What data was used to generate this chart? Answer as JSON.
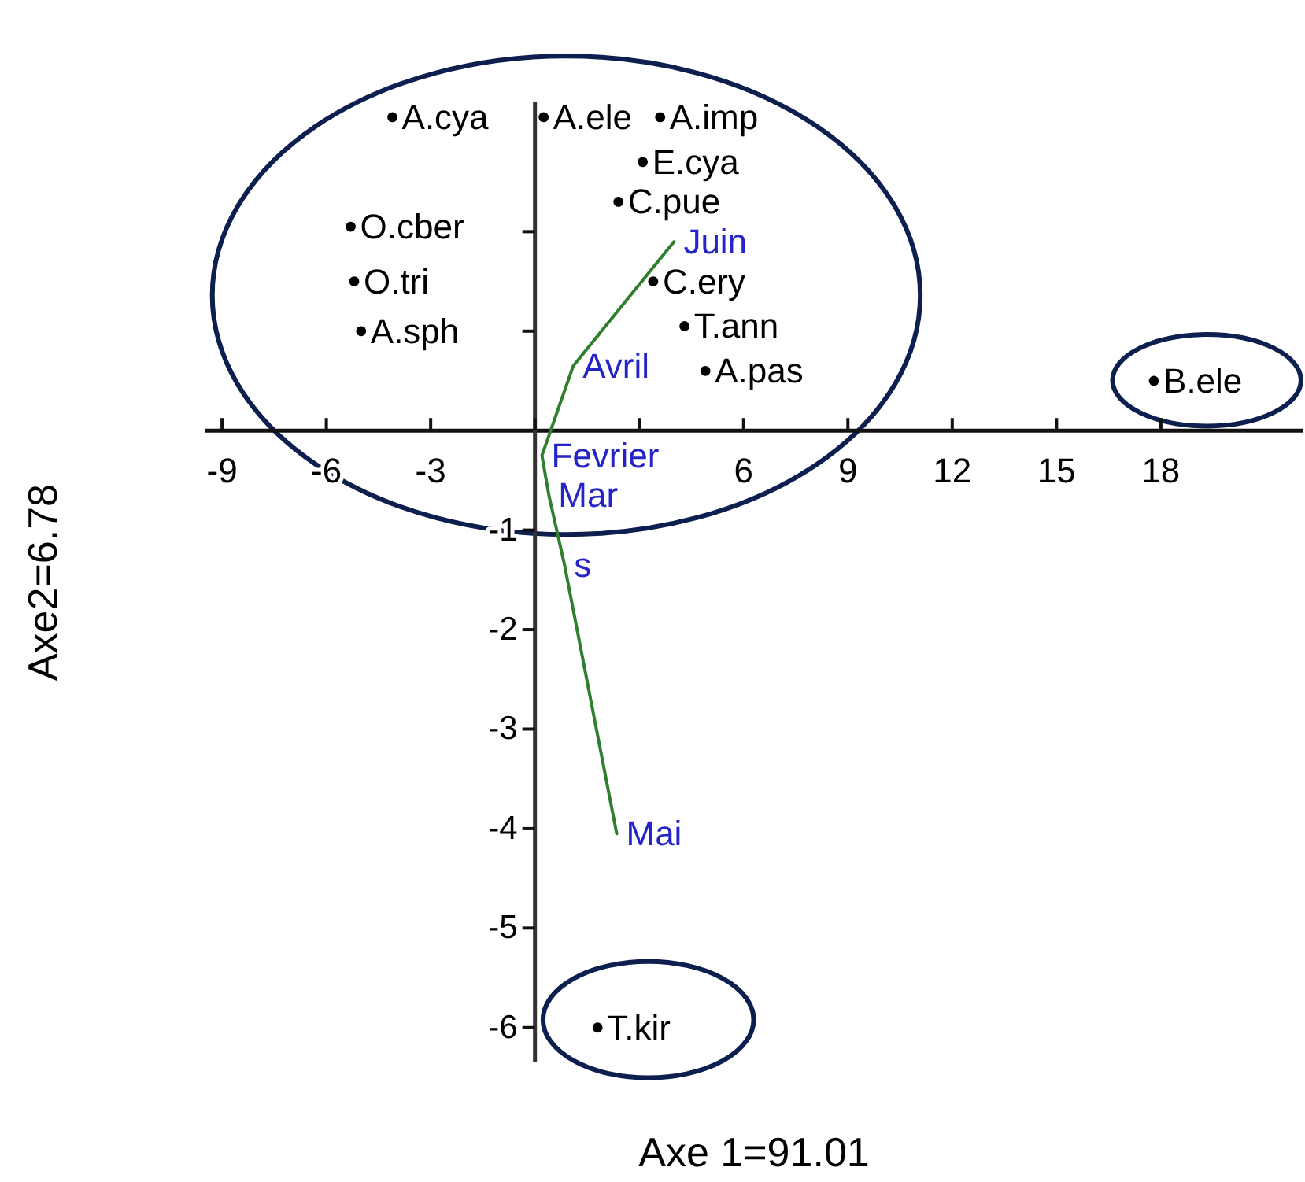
{
  "chart_data": {
    "type": "scatter",
    "xlabel": "Axe 1=91.01",
    "ylabel": "Axe2=6.78",
    "xlim": [
      -9.5,
      22.1
    ],
    "ylim": [
      -6.35,
      3.3
    ],
    "xticks": [
      -9,
      -6,
      -3,
      {
        "value": 0,
        "label": null
      },
      {
        "value": 3,
        "label": null
      },
      6,
      9,
      12,
      15,
      18
    ],
    "yticks": [
      -6,
      -5,
      -4,
      -3,
      -2,
      -1,
      {
        "value": 1,
        "label": null
      },
      {
        "value": 2,
        "label": null
      }
    ],
    "series": [
      {
        "type": "scatter",
        "color": "#000000",
        "marker": "circle",
        "x": [
          -4.1,
          0.25,
          3.6,
          3.1,
          2.4,
          -5.3,
          -5.2,
          3.4,
          4.3,
          -5.0,
          4.9,
          17.8,
          1.8
        ],
        "values": [
          3.15,
          3.15,
          3.15,
          2.7,
          2.3,
          2.05,
          1.5,
          1.5,
          1.05,
          1.0,
          0.6,
          0.5,
          -6.0
        ]
      },
      {
        "type": "line",
        "color": "#2f7f2f",
        "marker": "none",
        "x": [
          4.0,
          1.1,
          0.2,
          0.4,
          0.85,
          2.35
        ],
        "values": [
          1.9,
          0.65,
          -0.25,
          -0.65,
          -1.35,
          -4.05
        ]
      }
    ],
    "annotations": [
      {
        "text": "A.cya",
        "x": -4.1,
        "y": 3.15
      },
      {
        "text": "A.ele",
        "x": 0.25,
        "y": 3.15
      },
      {
        "text": "A.imp",
        "x": 3.6,
        "y": 3.15
      },
      {
        "text": "E.cya",
        "x": 3.1,
        "y": 2.7
      },
      {
        "text": "C.pue",
        "x": 2.4,
        "y": 2.3
      },
      {
        "text": "O.cber",
        "x": -5.3,
        "y": 2.05
      },
      {
        "text": "O.tri",
        "x": -5.2,
        "y": 1.5
      },
      {
        "text": "C.ery",
        "x": 3.4,
        "y": 1.5
      },
      {
        "text": "T.ann",
        "x": 4.3,
        "y": 1.05
      },
      {
        "text": "A.sph",
        "x": -5.0,
        "y": 1.0
      },
      {
        "text": "A.pas",
        "x": 4.9,
        "y": 0.6
      },
      {
        "text": "B.ele",
        "x": 17.8,
        "y": 0.5
      },
      {
        "text": "T.kir",
        "x": 1.8,
        "y": -6.0
      },
      {
        "text": "Juin",
        "x": 4.0,
        "y": 1.9
      },
      {
        "text": "Avril",
        "x": 1.1,
        "y": 0.65
      },
      {
        "text": "Fevrier",
        "x": 0.2,
        "y": -0.25
      },
      {
        "text": "Mar",
        "x": 0.4,
        "y": -0.65
      },
      {
        "text": "s",
        "x": 0.85,
        "y": -1.35
      },
      {
        "text": "Mai",
        "x": 2.35,
        "y": -4.05
      }
    ]
  }
}
